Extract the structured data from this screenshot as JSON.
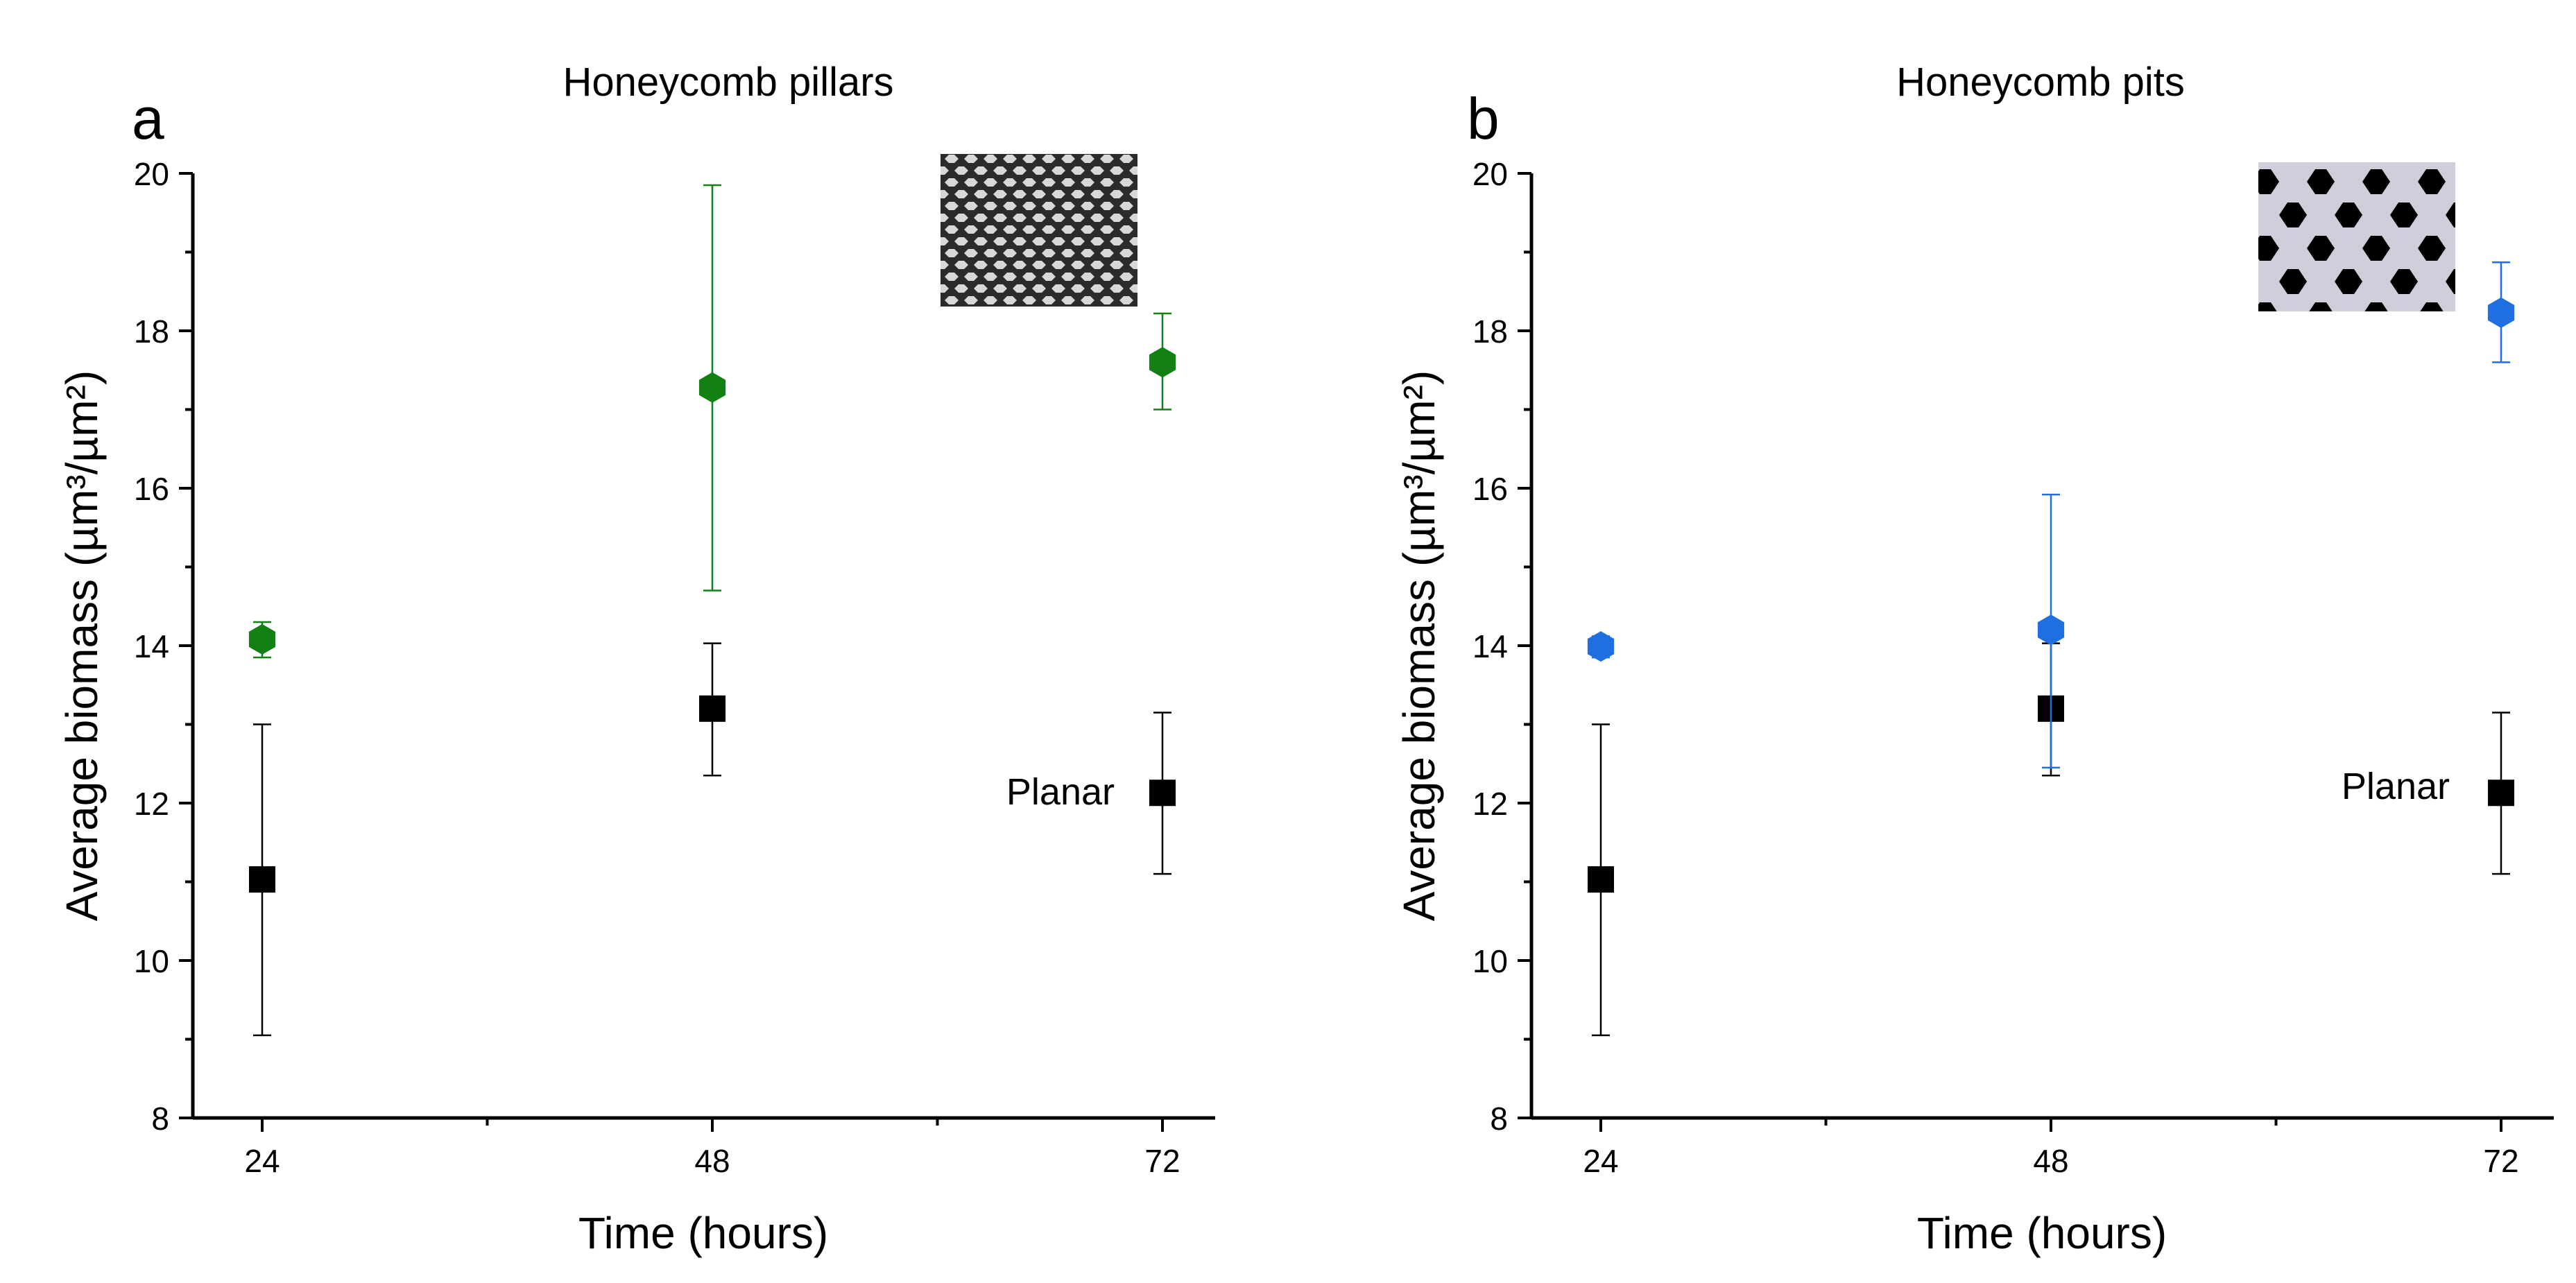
{
  "figure": {
    "shared": {
      "xlabel": "Time (hours)",
      "ylabel": "Average biomass (µm³/µm²)"
    }
  },
  "chart_data": [
    {
      "type": "scatter",
      "panel_letter": "a",
      "title": "Honeycomb pillars",
      "xlabel": "Time (hours)",
      "ylabel": "Average biomass (µm³/µm²)",
      "ylim": [
        8,
        20
      ],
      "yticks": [
        8,
        10,
        12,
        14,
        16,
        18,
        20
      ],
      "xticks": [
        24,
        48,
        72
      ],
      "annotation": "Planar",
      "inset": "honeycomb pillars surface image",
      "series": [
        {
          "name": "Honeycomb pillars",
          "marker": "hexagon",
          "color": "#128012",
          "x": [
            24,
            48,
            72
          ],
          "y": [
            14.08,
            17.28,
            17.6
          ],
          "err_low": [
            13.85,
            14.7,
            17.0
          ],
          "err_high": [
            14.3,
            19.85,
            18.22
          ]
        },
        {
          "name": "Planar",
          "marker": "square",
          "color": "#000000",
          "x": [
            24,
            48,
            72
          ],
          "y": [
            11.03,
            13.2,
            12.13
          ],
          "err_low": [
            9.05,
            12.35,
            11.1
          ],
          "err_high": [
            13.0,
            14.03,
            13.15
          ]
        }
      ]
    },
    {
      "type": "scatter",
      "panel_letter": "b",
      "title": "Honeycomb pits",
      "xlabel": "Time (hours)",
      "ylabel": "Average biomass (µm³/µm²)",
      "ylim": [
        8,
        20
      ],
      "yticks": [
        8,
        10,
        12,
        14,
        16,
        18,
        20
      ],
      "xticks": [
        24,
        48,
        72
      ],
      "annotation": "Planar",
      "inset": "honeycomb pits surface image",
      "series": [
        {
          "name": "Honeycomb pits",
          "marker": "hexagon",
          "color": "#1F6FE0",
          "x": [
            24,
            48,
            72
          ],
          "y": [
            13.99,
            14.2,
            18.23
          ],
          "err_low": [
            13.85,
            12.45,
            17.6
          ],
          "err_high": [
            14.12,
            15.92,
            18.87
          ]
        },
        {
          "name": "Planar",
          "marker": "square",
          "color": "#000000",
          "x": [
            24,
            48,
            72
          ],
          "y": [
            11.03,
            13.2,
            12.13
          ],
          "err_low": [
            9.05,
            12.35,
            11.1
          ],
          "err_high": [
            13.0,
            14.03,
            13.15
          ]
        }
      ]
    }
  ]
}
